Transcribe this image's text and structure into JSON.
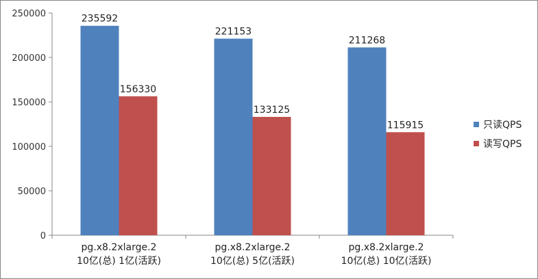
{
  "chart_data": {
    "type": "bar",
    "title": "",
    "xlabel": "",
    "ylabel": "",
    "ylim": [
      0,
      250000
    ],
    "yticks": [
      0,
      50000,
      100000,
      150000,
      200000,
      250000
    ],
    "grid": false,
    "legend_position": "right",
    "categories": [
      [
        "pg.x8.2xlarge.2",
        "10亿(总) 1亿(活跃)"
      ],
      [
        "pg.x8.2xlarge.2",
        "10亿(总) 5亿(活跃)"
      ],
      [
        "pg.x8.2xlarge.2",
        "10亿(总) 10亿(活跃)"
      ]
    ],
    "series": [
      {
        "name": "只读QPS",
        "values": [
          235592,
          221153,
          211268
        ],
        "color": "#4f81bd"
      },
      {
        "name": "读写QPS",
        "values": [
          156330,
          133125,
          115915
        ],
        "color": "#c0504d"
      }
    ]
  }
}
